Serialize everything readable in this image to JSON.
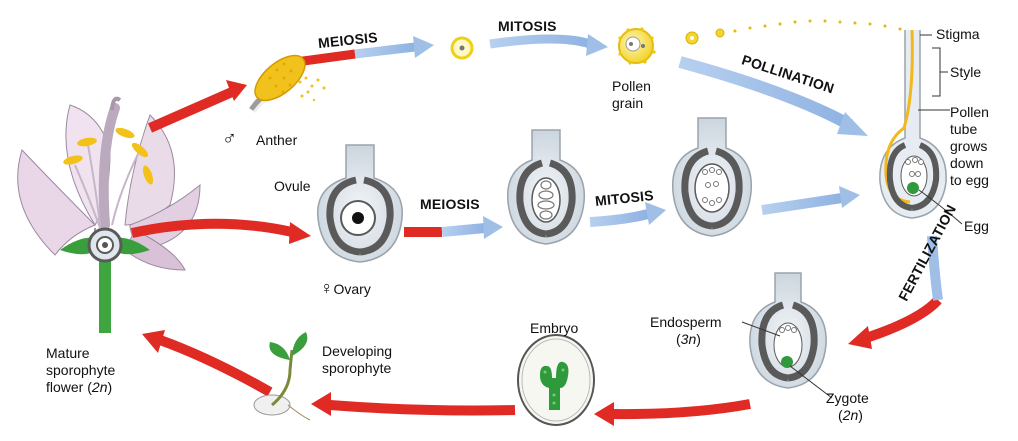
{
  "stages": {
    "meiosis_top": "MEIOSIS",
    "mitosis_top": "MITOSIS",
    "pollination": "POLLINATION",
    "meiosis_mid": "MEIOSIS",
    "mitosis_mid": "MITOSIS",
    "fertilization": "FERTILIZATION"
  },
  "labels": {
    "male_symbol": "♂",
    "anther": "Anther",
    "pollen_line1": "Pollen",
    "pollen_line2": "grain",
    "stigma": "Stigma",
    "style": "Style",
    "pollen_tube_1": "Pollen",
    "pollen_tube_2": "tube",
    "pollen_tube_3": "grows",
    "pollen_tube_4": "down",
    "pollen_tube_5": "to egg",
    "egg": "Egg",
    "ovule": "Ovule",
    "female_symbol": "♀",
    "ovary": "Ovary",
    "endosperm": "Endosperm",
    "endosperm_paren_open": "(",
    "endosperm_ploidy": "3n",
    "endosperm_paren_close": ")",
    "zygote": "Zygote",
    "zygote_paren_open": "(",
    "zygote_ploidy": "2n",
    "zygote_paren_close": ")",
    "embryo": "Embryo",
    "developing_1": "Developing",
    "developing_2": "sporophyte",
    "mature_1": "Mature",
    "mature_2": "sporophyte",
    "mature_3": "flower (",
    "mature_ploidy": "2n",
    "mature_paren_close": ")"
  },
  "colors": {
    "red_arrow": "#e02a24",
    "blue_arrow": "#9fbfe6",
    "ovule_gray": "#5a5a5a",
    "ovule_fill": "#dfe6ec",
    "pollen_yellow": "#f2d21e",
    "zygote_green": "#2f9a3c",
    "petal_pink": "#e8d6e6"
  }
}
